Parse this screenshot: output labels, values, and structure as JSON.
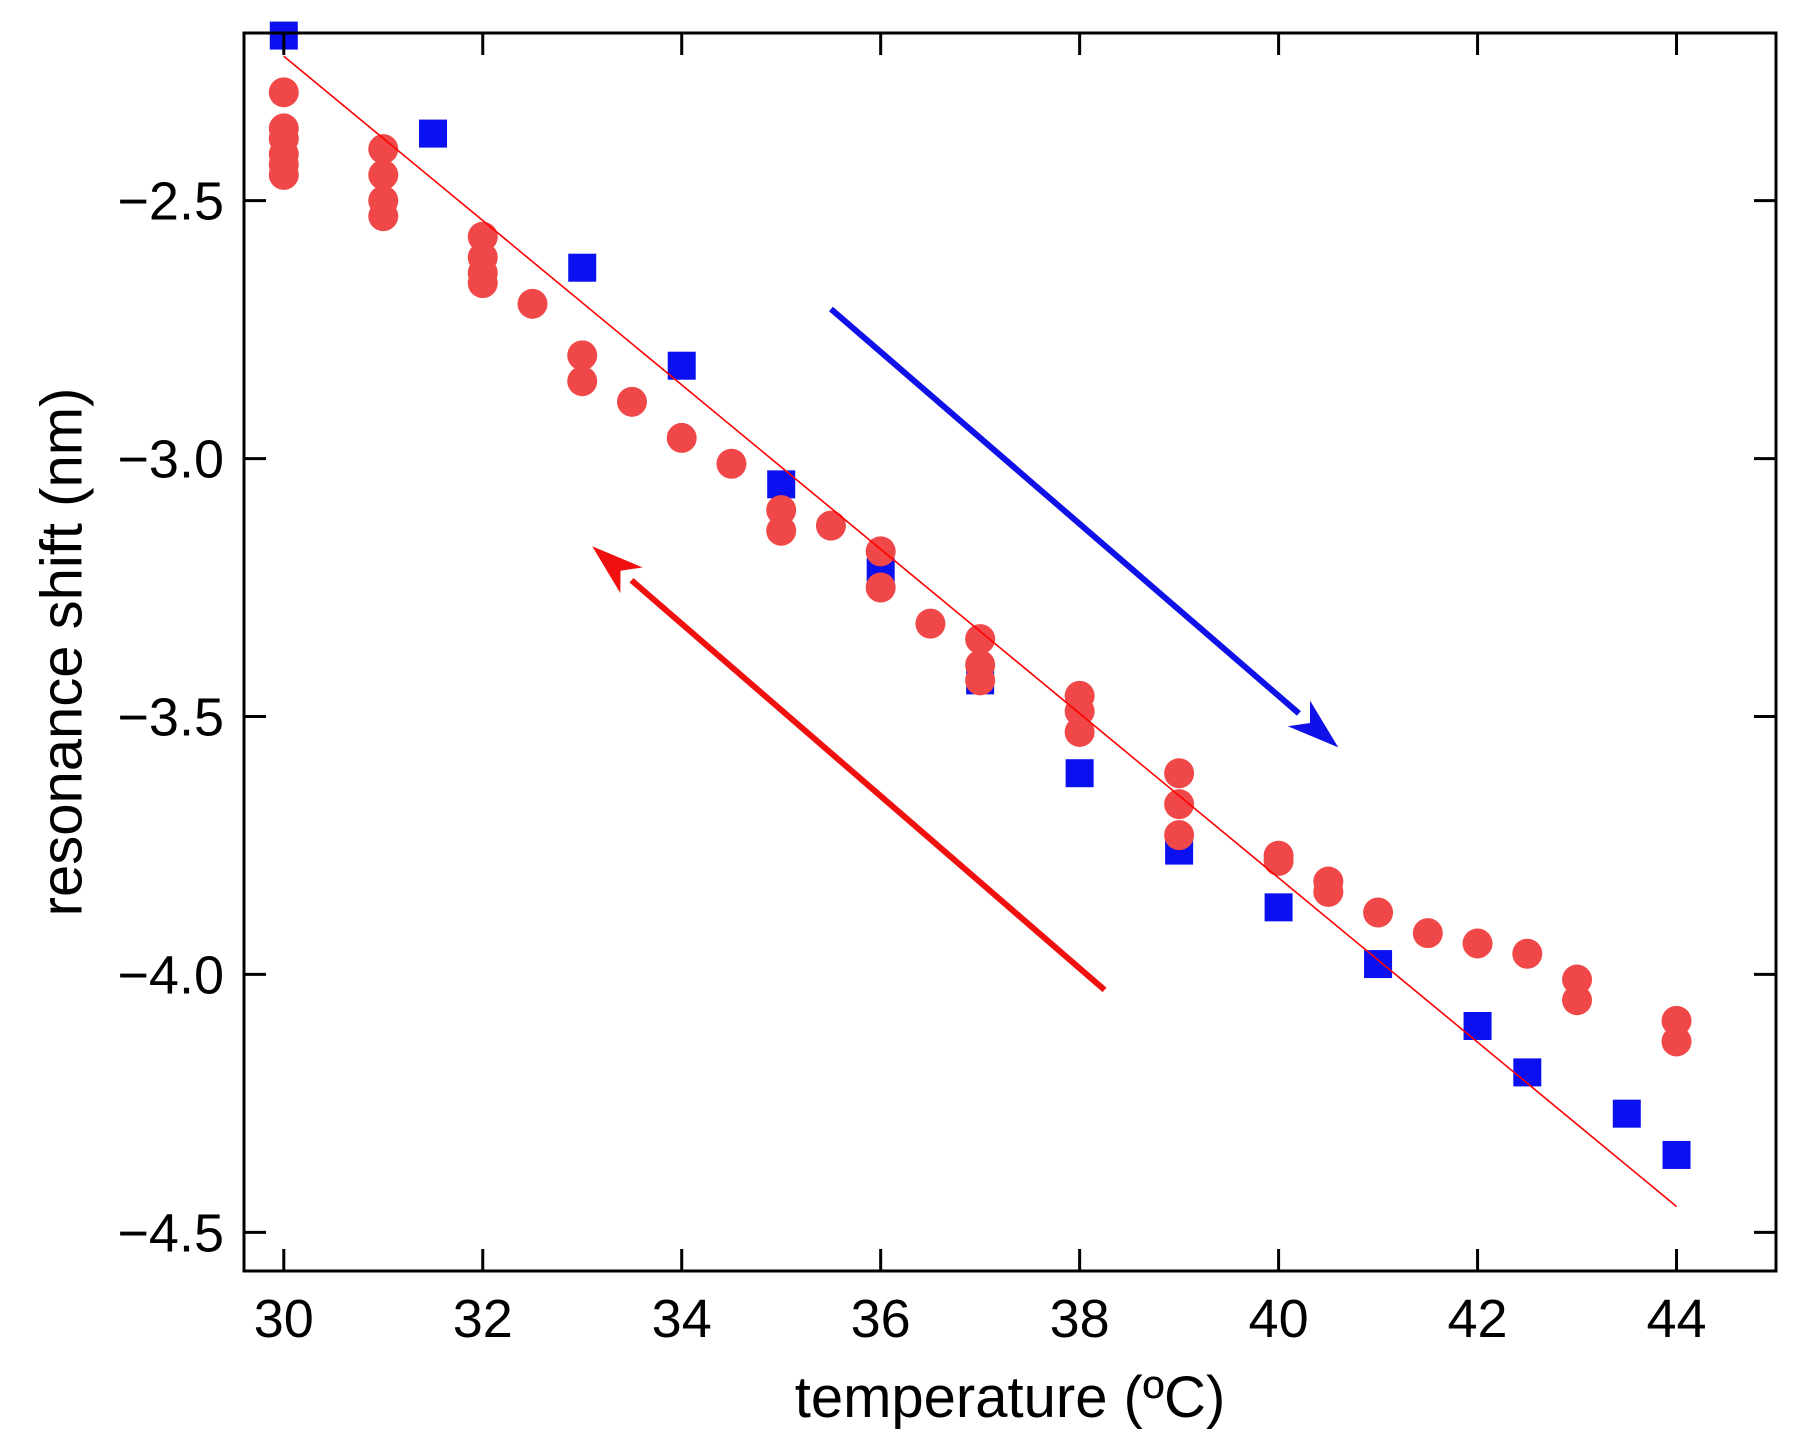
{
  "chart_data": {
    "type": "scatter",
    "title": "",
    "xlabel": "temperature (ºC)",
    "ylabel": "resonance shift (nm)",
    "xlim": [
      29.6,
      45.0
    ],
    "ylim": [
      -4.575,
      -2.175
    ],
    "x_ticks": [
      30,
      32,
      34,
      36,
      38,
      40,
      42,
      44
    ],
    "x_tick_labels": [
      "30",
      "32",
      "34",
      "36",
      "38",
      "40",
      "42",
      "44"
    ],
    "y_ticks": [
      -2.5,
      -3.0,
      -3.5,
      -4.0,
      -4.5
    ],
    "y_tick_labels": [
      "−2.5",
      "−3.0",
      "−3.5",
      "−4.0",
      "−4.5"
    ],
    "grid": false,
    "colors": {
      "heating": "#0a10f0",
      "cooling": "#f04848",
      "fit": "#ff0000",
      "heating_arrow": "#1010e8",
      "cooling_arrow": "#f01010"
    },
    "series": [
      {
        "name": "heating",
        "marker": "square",
        "color": "#0a10f0",
        "points": [
          [
            30,
            -2.18
          ],
          [
            31.5,
            -2.37
          ],
          [
            33,
            -2.63
          ],
          [
            34,
            -2.82
          ],
          [
            35,
            -3.05
          ],
          [
            36,
            -3.22
          ],
          [
            37,
            -3.43
          ],
          [
            38,
            -3.61
          ],
          [
            39,
            -3.76
          ],
          [
            40,
            -3.87
          ],
          [
            41,
            -3.98
          ],
          [
            42,
            -4.1
          ],
          [
            42.5,
            -4.19
          ],
          [
            43.5,
            -4.27
          ],
          [
            44,
            -4.35
          ]
        ]
      },
      {
        "name": "cooling",
        "marker": "circle",
        "color": "#f04848",
        "points": [
          [
            30,
            -2.29
          ],
          [
            30,
            -2.36
          ],
          [
            30,
            -2.38
          ],
          [
            30,
            -2.41
          ],
          [
            30,
            -2.43
          ],
          [
            30,
            -2.45
          ],
          [
            31,
            -2.4
          ],
          [
            31,
            -2.45
          ],
          [
            31,
            -2.5
          ],
          [
            31,
            -2.53
          ],
          [
            32,
            -2.57
          ],
          [
            32,
            -2.61
          ],
          [
            32,
            -2.64
          ],
          [
            32,
            -2.66
          ],
          [
            32.5,
            -2.7
          ],
          [
            33,
            -2.8
          ],
          [
            33,
            -2.85
          ],
          [
            33.5,
            -2.89
          ],
          [
            34,
            -2.96
          ],
          [
            34.5,
            -3.01
          ],
          [
            35,
            -3.1
          ],
          [
            35,
            -3.14
          ],
          [
            35.5,
            -3.13
          ],
          [
            36,
            -3.18
          ],
          [
            36,
            -3.25
          ],
          [
            36.5,
            -3.32
          ],
          [
            37,
            -3.35
          ],
          [
            37,
            -3.4
          ],
          [
            37,
            -3.43
          ],
          [
            38,
            -3.46
          ],
          [
            38,
            -3.49
          ],
          [
            38,
            -3.53
          ],
          [
            39,
            -3.61
          ],
          [
            39,
            -3.67
          ],
          [
            39,
            -3.73
          ],
          [
            40,
            -3.77
          ],
          [
            40,
            -3.78
          ],
          [
            40.5,
            -3.82
          ],
          [
            40.5,
            -3.84
          ],
          [
            41,
            -3.88
          ],
          [
            41.5,
            -3.92
          ],
          [
            42,
            -3.94
          ],
          [
            42.5,
            -3.96
          ],
          [
            43,
            -4.01
          ],
          [
            43,
            -4.05
          ],
          [
            44,
            -4.09
          ],
          [
            44,
            -4.13
          ]
        ]
      },
      {
        "name": "linear fit",
        "marker": "line",
        "color": "#ff0000",
        "points": [
          [
            30,
            -2.22
          ],
          [
            44,
            -4.45
          ]
        ]
      }
    ],
    "arrows": [
      {
        "name": "heating-direction",
        "color": "#1010e8",
        "from": [
          35.5,
          -2.71
        ],
        "to": [
          40.6,
          -3.56
        ]
      },
      {
        "name": "cooling-direction",
        "color": "#f01010",
        "from": [
          38.25,
          -4.03
        ],
        "to": [
          33.1,
          -3.17
        ]
      }
    ]
  }
}
